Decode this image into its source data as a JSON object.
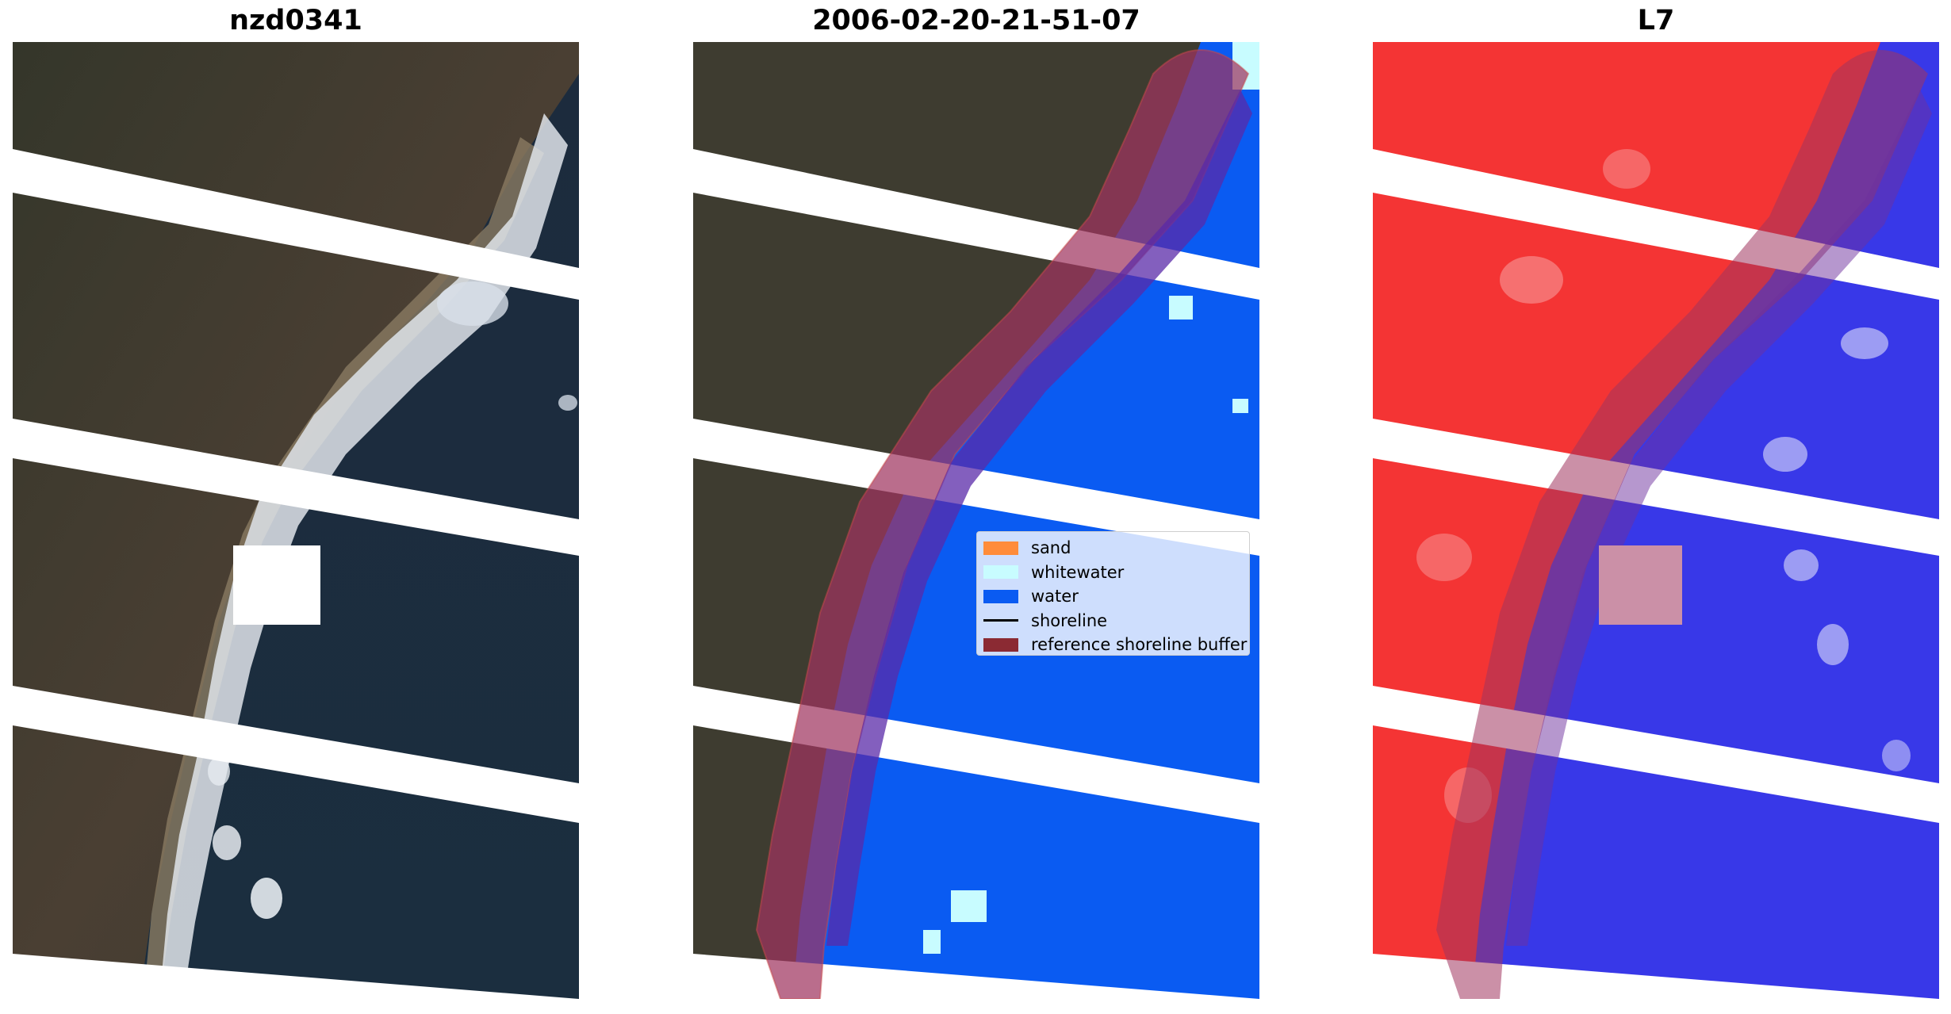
{
  "titles": {
    "rgb": "nzd0341",
    "classified": "2006-02-20-21-51-07",
    "index": "L7"
  },
  "legend": {
    "items": [
      {
        "label": "sand",
        "kind": "patch",
        "color": "#ff8c3a"
      },
      {
        "label": "whitewater",
        "kind": "patch",
        "color": "#c8fcff"
      },
      {
        "label": "water",
        "kind": "patch",
        "color": "#0a5bf2"
      },
      {
        "label": "shoreline",
        "kind": "line",
        "color": "#000000"
      },
      {
        "label": "reference shoreline buffer",
        "kind": "patch",
        "color": "#8b2a33"
      }
    ]
  },
  "colors": {
    "land": "#3a3a2e",
    "ocean": "#1a2a3e",
    "surf": "#dfe4ea",
    "water_class": "#0a5bf2",
    "buffer": "#a0355f",
    "index_land": "#f43434",
    "index_water": "#3838e8"
  }
}
